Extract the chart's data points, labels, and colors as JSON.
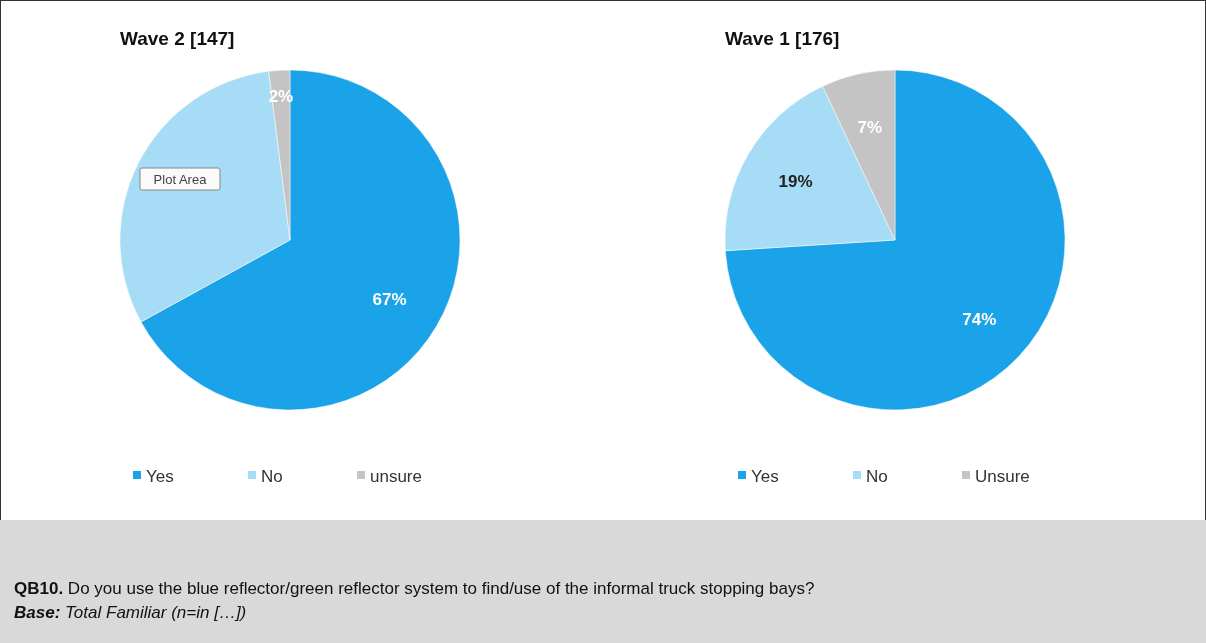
{
  "chart_data": [
    {
      "type": "pie",
      "title": "Wave 2 [147]",
      "categories": [
        "Yes",
        "No",
        "unsure"
      ],
      "values": [
        67,
        31,
        2
      ],
      "colors": [
        "#1aa3e8",
        "#a6dcf5",
        "#c4c4c4"
      ],
      "value_labels": [
        "67%",
        null,
        "2%"
      ],
      "legend": "bottom",
      "annotations": [
        "Plot Area",
        "QB10. Do you use the blue reflector/green reflector system to find/use of the informal truck stopping bays?",
        "Base: Total Familiar (n=in […])"
      ]
    },
    {
      "type": "pie",
      "title": "Wave 1 [176]",
      "categories": [
        "Yes",
        "No",
        "Unsure"
      ],
      "values": [
        74,
        19,
        7
      ],
      "colors": [
        "#1aa3e8",
        "#a6dcf5",
        "#c4c4c4"
      ],
      "value_labels": [
        "74%",
        "19%",
        "7%"
      ],
      "legend": "bottom"
    }
  ]
}
